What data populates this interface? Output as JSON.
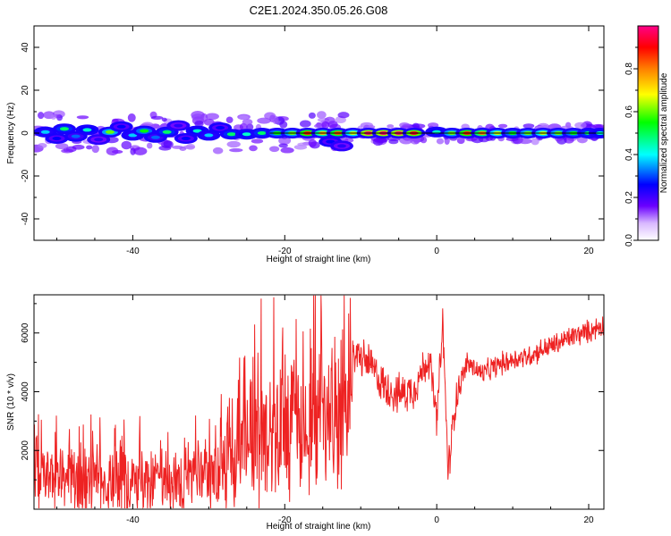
{
  "title": "C2E1.2024.350.05.26.G08",
  "chart_data": [
    {
      "type": "heatmap",
      "title": "C2E1.2024.350.05.26.G08",
      "xlabel": "Height of straight line (km)",
      "ylabel": "Frequency (Hz)",
      "xlim": [
        -53,
        22
      ],
      "ylim": [
        -50,
        50
      ],
      "x_ticks": [
        -40,
        -20,
        0,
        20
      ],
      "y_ticks": [
        -40,
        -20,
        0,
        20,
        40
      ],
      "grid": false,
      "colorbar": {
        "label": "Normalized spectral amplitude",
        "range": [
          0,
          1
        ],
        "ticks": [
          0.0,
          0.2,
          0.4,
          0.6,
          0.8
        ],
        "colormap": [
          "#ffffff",
          "#6a00ff",
          "#0000ff",
          "#00ffff",
          "#00ff00",
          "#ffff00",
          "#ff7f00",
          "#ff0000",
          "#ff00aa"
        ]
      },
      "peak_frequency_hz": 0,
      "clusters": [
        {
          "x": -51.5,
          "f": 0.5,
          "amp": 0.35
        },
        {
          "x": -50,
          "f": -2.5,
          "amp": 0.25
        },
        {
          "x": -49,
          "f": 2,
          "amp": 0.45
        },
        {
          "x": -47.5,
          "f": -1.5,
          "amp": 0.3
        },
        {
          "x": -46,
          "f": 1.5,
          "amp": 0.4
        },
        {
          "x": -44.5,
          "f": -3,
          "amp": 0.2
        },
        {
          "x": -43,
          "f": 0.5,
          "amp": 0.55
        },
        {
          "x": -41.5,
          "f": 3,
          "amp": 0.25
        },
        {
          "x": -40,
          "f": -1,
          "amp": 0.35
        },
        {
          "x": -38.5,
          "f": 1,
          "amp": 0.5
        },
        {
          "x": -37,
          "f": -2,
          "amp": 0.3
        },
        {
          "x": -35.5,
          "f": 0.5,
          "amp": 0.45
        },
        {
          "x": -34,
          "f": 3.5,
          "amp": 0.2
        },
        {
          "x": -33,
          "f": -2.5,
          "amp": 0.25
        },
        {
          "x": -31.5,
          "f": 1,
          "amp": 0.4
        },
        {
          "x": -30,
          "f": -1,
          "amp": 0.35
        },
        {
          "x": -28.5,
          "f": 2.5,
          "amp": 0.25
        },
        {
          "x": -27,
          "f": -0.5,
          "amp": 0.45
        },
        {
          "x": -25,
          "f": -0.5,
          "amp": 0.4
        },
        {
          "x": -23,
          "f": 0,
          "amp": 0.45
        },
        {
          "x": -21,
          "f": 0,
          "amp": 0.5
        },
        {
          "x": -19,
          "f": 0,
          "amp": 0.55
        },
        {
          "x": -17,
          "f": 0,
          "amp": 0.85
        },
        {
          "x": -15,
          "f": 0,
          "amp": 0.7
        },
        {
          "x": -14,
          "f": -4,
          "amp": 0.25
        },
        {
          "x": -12.5,
          "f": -6,
          "amp": 0.2
        },
        {
          "x": -13,
          "f": 0,
          "amp": 0.8
        },
        {
          "x": -11,
          "f": 0,
          "amp": 0.6
        },
        {
          "x": -9,
          "f": 0,
          "amp": 0.95
        },
        {
          "x": -7,
          "f": 0,
          "amp": 0.95
        },
        {
          "x": -5,
          "f": 0,
          "amp": 0.95
        },
        {
          "x": -3,
          "f": 0,
          "amp": 0.9
        },
        {
          "x": 0,
          "f": 0.5,
          "amp": 0.4
        },
        {
          "x": 2,
          "f": 0,
          "amp": 0.55
        },
        {
          "x": 4,
          "f": 0,
          "amp": 0.85
        },
        {
          "x": 6,
          "f": 0,
          "amp": 0.75
        },
        {
          "x": 8,
          "f": 0,
          "amp": 0.6
        },
        {
          "x": 10,
          "f": 0,
          "amp": 0.5
        },
        {
          "x": 12,
          "f": 0,
          "amp": 0.55
        },
        {
          "x": 14,
          "f": 0,
          "amp": 0.6
        },
        {
          "x": 16,
          "f": 0,
          "amp": 0.55
        },
        {
          "x": 18,
          "f": 0,
          "amp": 0.5
        },
        {
          "x": 20,
          "f": 0,
          "amp": 0.45
        },
        {
          "x": 21.5,
          "f": 0,
          "amp": 0.4
        }
      ]
    },
    {
      "type": "line",
      "xlabel": "Height of straight line (km)",
      "ylabel": "SNR (10 * v/v)",
      "xlim": [
        -53,
        22
      ],
      "ylim": [
        0,
        7300
      ],
      "x_ticks": [
        -40,
        -20,
        0,
        20
      ],
      "y_ticks": [
        2000,
        4000,
        6000
      ],
      "grid": false,
      "color": "#ee2222",
      "envelope": [
        {
          "x": -53,
          "y": 1000
        },
        {
          "x": -50,
          "y": 950
        },
        {
          "x": -45,
          "y": 1000
        },
        {
          "x": -40,
          "y": 1000
        },
        {
          "x": -35,
          "y": 1050
        },
        {
          "x": -30,
          "y": 1100
        },
        {
          "x": -28,
          "y": 1600
        },
        {
          "x": -26,
          "y": 2400
        },
        {
          "x": -24,
          "y": 2500
        },
        {
          "x": -22,
          "y": 2800
        },
        {
          "x": -20,
          "y": 3000
        },
        {
          "x": -17,
          "y": 2900
        },
        {
          "x": -15,
          "y": 3100
        },
        {
          "x": -13,
          "y": 3200
        },
        {
          "x": -12,
          "y": 2800
        },
        {
          "x": -11,
          "y": 5300
        },
        {
          "x": -9,
          "y": 5000
        },
        {
          "x": -7,
          "y": 4200
        },
        {
          "x": -5,
          "y": 3900
        },
        {
          "x": -3,
          "y": 4100
        },
        {
          "x": -1,
          "y": 5200
        },
        {
          "x": 0,
          "y": 3000
        },
        {
          "x": 0.8,
          "y": 6300
        },
        {
          "x": 1.5,
          "y": 1200
        },
        {
          "x": 2.5,
          "y": 3800
        },
        {
          "x": 4,
          "y": 5000
        },
        {
          "x": 6,
          "y": 4600
        },
        {
          "x": 8,
          "y": 4900
        },
        {
          "x": 10,
          "y": 5100
        },
        {
          "x": 12,
          "y": 5200
        },
        {
          "x": 14,
          "y": 5450
        },
        {
          "x": 16,
          "y": 5650
        },
        {
          "x": 18,
          "y": 5900
        },
        {
          "x": 20,
          "y": 6050
        },
        {
          "x": 22,
          "y": 6300
        }
      ]
    }
  ]
}
